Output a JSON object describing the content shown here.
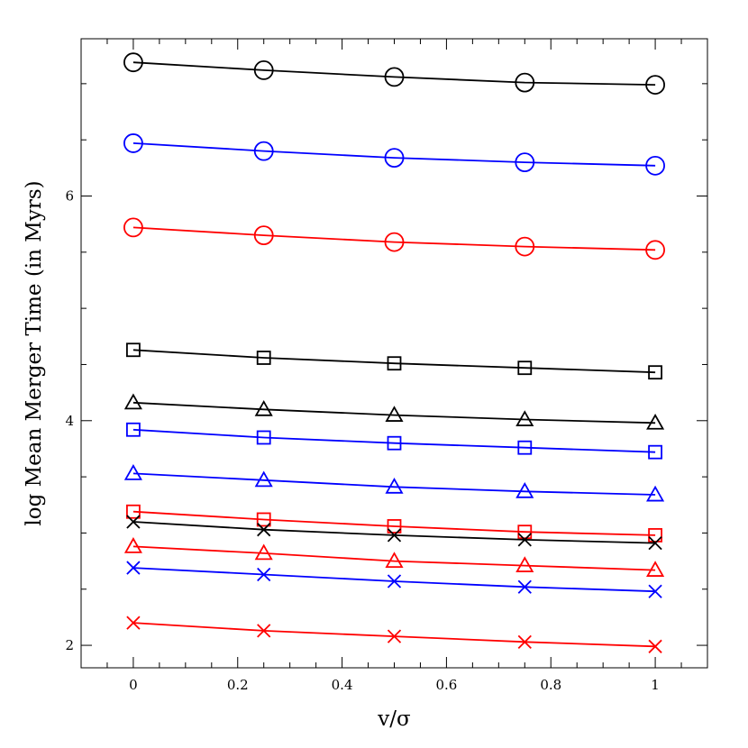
{
  "chart_data": {
    "type": "line",
    "xlabel": "v/σ",
    "ylabel": "log Mean Merger Time (in Myrs)",
    "xlim": [
      -0.1,
      1.1
    ],
    "ylim": [
      1.8,
      7.4
    ],
    "grid": false,
    "x": [
      0,
      0.25,
      0.5,
      0.75,
      1
    ],
    "x_ticks": [
      {
        "value": 0,
        "label": "0"
      },
      {
        "value": 0.2,
        "label": "0.2"
      },
      {
        "value": 0.4,
        "label": "0.4"
      },
      {
        "value": 0.6,
        "label": "0.6"
      },
      {
        "value": 0.8,
        "label": "0.8"
      },
      {
        "value": 1,
        "label": "1"
      }
    ],
    "y_ticks": [
      {
        "value": 2,
        "label": "2"
      },
      {
        "value": 4,
        "label": "4"
      },
      {
        "value": 6,
        "label": "6"
      }
    ],
    "series": [
      {
        "color": "#000000",
        "marker": "circle",
        "values": [
          7.19,
          7.12,
          7.06,
          7.01,
          6.99
        ]
      },
      {
        "color": "#0000ff",
        "marker": "circle",
        "values": [
          6.47,
          6.4,
          6.34,
          6.3,
          6.27
        ]
      },
      {
        "color": "#ff0000",
        "marker": "circle",
        "values": [
          5.72,
          5.65,
          5.59,
          5.55,
          5.52
        ]
      },
      {
        "color": "#000000",
        "marker": "square",
        "values": [
          4.63,
          4.56,
          4.51,
          4.47,
          4.43
        ]
      },
      {
        "color": "#000000",
        "marker": "triangle",
        "values": [
          4.16,
          4.1,
          4.05,
          4.01,
          3.98
        ]
      },
      {
        "color": "#0000ff",
        "marker": "square",
        "values": [
          3.92,
          3.85,
          3.8,
          3.76,
          3.72
        ]
      },
      {
        "color": "#0000ff",
        "marker": "triangle",
        "values": [
          3.53,
          3.47,
          3.41,
          3.37,
          3.34
        ]
      },
      {
        "color": "#ff0000",
        "marker": "square",
        "values": [
          3.19,
          3.12,
          3.06,
          3.01,
          2.98
        ]
      },
      {
        "color": "#000000",
        "marker": "cross",
        "values": [
          3.1,
          3.03,
          2.98,
          2.94,
          2.91
        ]
      },
      {
        "color": "#ff0000",
        "marker": "triangle",
        "values": [
          2.88,
          2.82,
          2.75,
          2.71,
          2.67
        ]
      },
      {
        "color": "#0000ff",
        "marker": "cross",
        "values": [
          2.69,
          2.63,
          2.57,
          2.52,
          2.48
        ]
      },
      {
        "color": "#ff0000",
        "marker": "cross",
        "values": [
          2.2,
          2.13,
          2.08,
          2.03,
          1.99
        ]
      }
    ]
  }
}
